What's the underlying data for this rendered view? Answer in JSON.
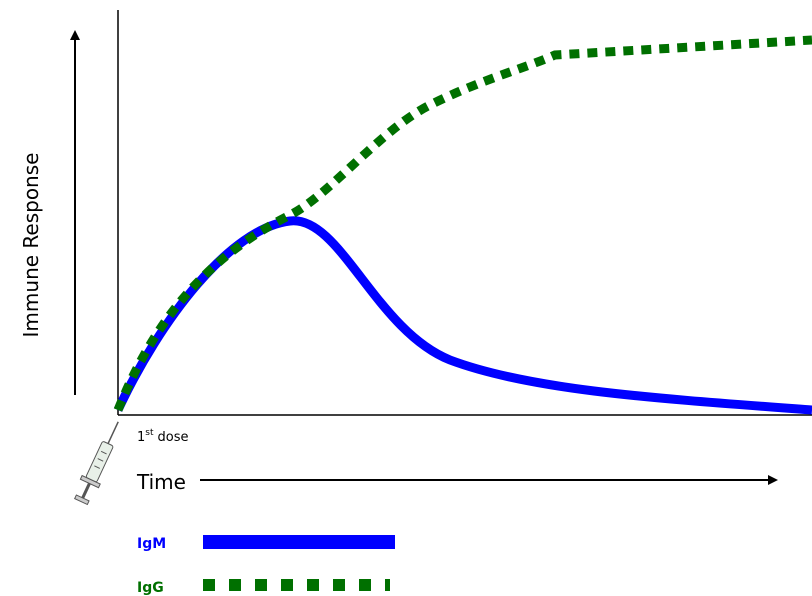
{
  "axes": {
    "y_label": "Immune Response",
    "x_label": "Time"
  },
  "annotation": {
    "base": "1",
    "sup": "st",
    "rest": "dose"
  },
  "legend": [
    {
      "label": "IgM",
      "color": "#0000ff"
    },
    {
      "label": "IgG",
      "color": "#007000"
    }
  ]
}
